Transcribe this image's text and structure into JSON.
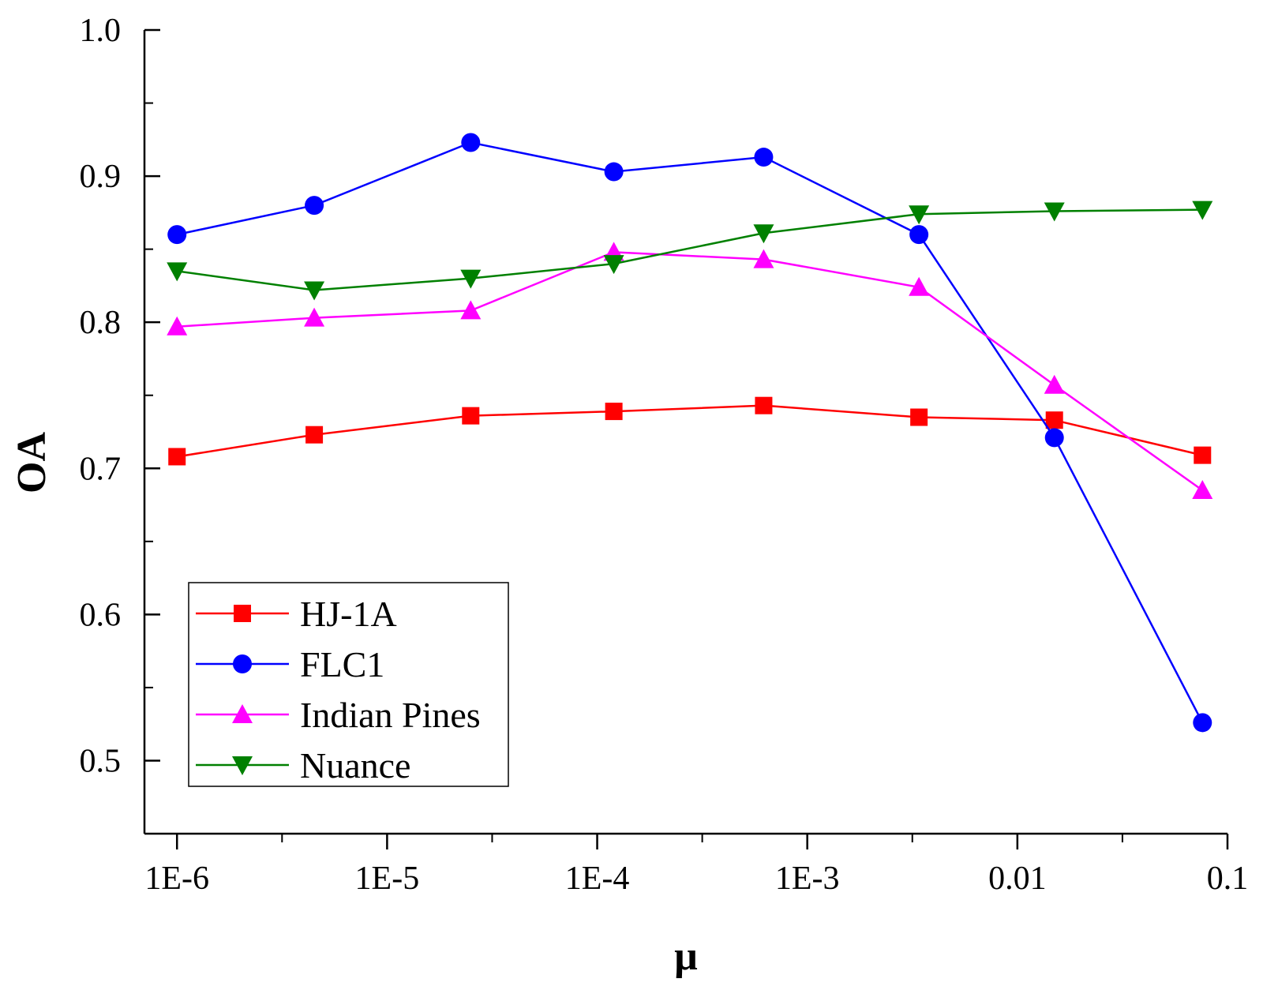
{
  "chart_data": {
    "type": "line",
    "title": "",
    "xlabel": "μ",
    "ylabel": "OA",
    "xscale": "log",
    "xlim": [
      7e-07,
      0.1
    ],
    "ylim": [
      0.45,
      1.0
    ],
    "grid": false,
    "legend_position": "bottom-left",
    "x_ticks": [
      {
        "value": 1e-06,
        "label": "1E-6"
      },
      {
        "value": 1e-05,
        "label": "1E-5"
      },
      {
        "value": 0.0001,
        "label": "1E-4"
      },
      {
        "value": 0.001,
        "label": "1E-3"
      },
      {
        "value": 0.01,
        "label": "0.01"
      },
      {
        "value": 0.1,
        "label": "0.1"
      }
    ],
    "y_ticks": [
      {
        "value": 0.5,
        "label": "0.5"
      },
      {
        "value": 0.6,
        "label": "0.6"
      },
      {
        "value": 0.7,
        "label": "0.7"
      },
      {
        "value": 0.8,
        "label": "0.8"
      },
      {
        "value": 0.9,
        "label": "0.9"
      },
      {
        "value": 1.0,
        "label": "1.0"
      }
    ],
    "x": [
      1e-06,
      4.5e-06,
      2.5e-05,
      0.00012,
      0.00062,
      0.0034,
      0.015,
      0.076
    ],
    "series": [
      {
        "name": "HJ-1A",
        "color": "#ff0000",
        "marker": "square",
        "values": [
          0.708,
          0.723,
          0.736,
          0.739,
          0.743,
          0.735,
          0.733,
          0.709
        ]
      },
      {
        "name": "FLC1",
        "color": "#0000ff",
        "marker": "circle",
        "values": [
          0.86,
          0.88,
          0.923,
          0.903,
          0.913,
          0.86,
          0.721,
          0.526
        ]
      },
      {
        "name": "Indian Pines",
        "color": "#ff00ff",
        "marker": "triangle-up",
        "values": [
          0.797,
          0.803,
          0.808,
          0.848,
          0.843,
          0.824,
          0.757,
          0.685
        ]
      },
      {
        "name": "Nuance",
        "color": "#008000",
        "marker": "triangle-down",
        "values": [
          0.835,
          0.822,
          0.83,
          0.84,
          0.861,
          0.874,
          0.876,
          0.877
        ]
      }
    ]
  }
}
